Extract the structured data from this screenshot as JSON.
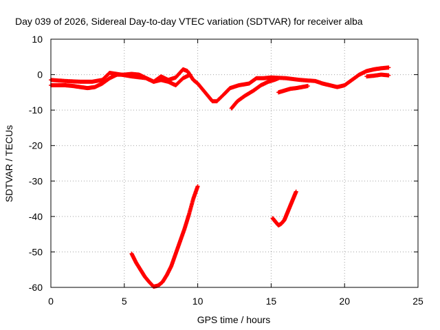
{
  "chart_data": {
    "type": "scatter",
    "title": "Day 039 of 2026, Sidereal Day-to-day VTEC variation (SDTVAR) for receiver alba",
    "xlabel": "GPS time / hours",
    "ylabel": "SDTVAR / TECUs",
    "xlim": [
      0,
      25
    ],
    "ylim": [
      -60,
      10
    ],
    "xticks": [
      0,
      5,
      10,
      15,
      20,
      25
    ],
    "xtick_labels": [
      "0",
      "5",
      "10",
      "15",
      "20",
      "25"
    ],
    "yticks": [
      10,
      0,
      -10,
      -20,
      -30,
      -40,
      -50,
      -60
    ],
    "ytick_labels": [
      "10",
      "0",
      "-10",
      "-20",
      "-30",
      "-40",
      "-50",
      "-60"
    ],
    "grid": true,
    "series": [
      {
        "name": "main-upper",
        "x": [
          0,
          1,
          2,
          2.8,
          3.5,
          4,
          4.8,
          5.5,
          6.5,
          7,
          7.5,
          8,
          8.5,
          9,
          9.3,
          9.7,
          10,
          10.5,
          11,
          11.3,
          11.8,
          12.2,
          12.8,
          13.5,
          14,
          14.5,
          15,
          16,
          17,
          18,
          18.5,
          19,
          19.5,
          20,
          20.5,
          21,
          21.5,
          22,
          22.5,
          23
        ],
        "y": [
          -1.5,
          -1.8,
          -2.0,
          -2.0,
          -1.5,
          0.5,
          0,
          -0.5,
          -1.0,
          -2.0,
          -0.5,
          -1.5,
          -0.8,
          1.5,
          1.0,
          -1.5,
          -2.5,
          -5.0,
          -7.5,
          -7.5,
          -5.5,
          -3.8,
          -3.0,
          -2.5,
          -1.0,
          -1.0,
          -0.8,
          -1.0,
          -1.5,
          -1.8,
          -2.5,
          -3.0,
          -3.5,
          -3.0,
          -1.5,
          0.0,
          1.0,
          1.5,
          1.8,
          2.0
        ]
      },
      {
        "name": "main-lower",
        "x": [
          0,
          0.5,
          1,
          1.5,
          2,
          2.5,
          3,
          3.5,
          4,
          4.5,
          5,
          5.5,
          6,
          6.5,
          7,
          7.5,
          8,
          8.5,
          9,
          9.5
        ],
        "y": [
          -3.0,
          -3.0,
          -3.0,
          -3.2,
          -3.5,
          -3.8,
          -3.5,
          -2.5,
          -1.0,
          0.0,
          0.0,
          0.2,
          0.0,
          -1.0,
          -2.0,
          -1.5,
          -2.0,
          -3.0,
          -1.0,
          0.0
        ]
      },
      {
        "name": "secondary-late",
        "x": [
          12.3,
          12.7,
          13.2,
          13.8,
          14.3,
          14.8,
          15.2,
          15.5
        ],
        "y": [
          -9.5,
          -7.5,
          -6.0,
          -4.5,
          -3.0,
          -2.0,
          -1.5,
          -1.0
        ]
      },
      {
        "name": "secondary-mid",
        "x": [
          15.5,
          15.9,
          16.3,
          16.7,
          17.1,
          17.5
        ],
        "y": [
          -5.0,
          -4.5,
          -4.0,
          -3.8,
          -3.5,
          -3.2
        ]
      },
      {
        "name": "secondary-right",
        "x": [
          21.5,
          22,
          22.5,
          23
        ],
        "y": [
          -0.5,
          -0.3,
          0.0,
          -0.2
        ]
      },
      {
        "name": "deep-dip",
        "x": [
          5.5,
          5.8,
          6.1,
          6.4,
          6.7,
          7.0,
          7.3,
          7.6,
          7.9,
          8.2,
          8.5,
          8.8,
          9.1,
          9.4,
          9.7,
          10.0
        ],
        "y": [
          -50.5,
          -53.0,
          -55.0,
          -57.0,
          -58.5,
          -59.8,
          -59.5,
          -58.5,
          -56.5,
          -54.0,
          -50.5,
          -47.0,
          -43.5,
          -39.5,
          -35.0,
          -31.5
        ]
      },
      {
        "name": "small-dip",
        "x": [
          15.1,
          15.3,
          15.5,
          15.7,
          15.9,
          16.1,
          16.3,
          16.5,
          16.7
        ],
        "y": [
          -40.5,
          -41.5,
          -42.5,
          -42.0,
          -41.0,
          -39.0,
          -37.0,
          -35.0,
          -33.0
        ]
      }
    ],
    "colors": {
      "series": "#ff0000",
      "grid": "#a0a0a0",
      "axis": "#000000"
    }
  }
}
